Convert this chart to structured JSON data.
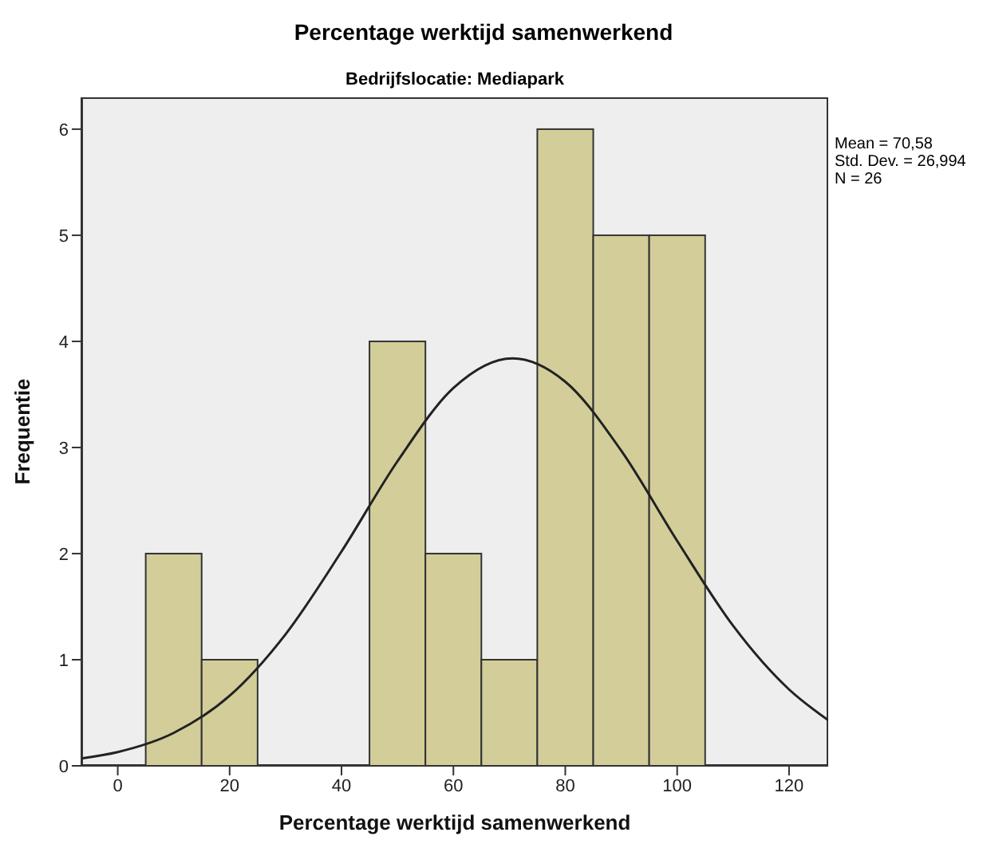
{
  "chart_data": {
    "type": "histogram",
    "title": "Percentage werktijd samenwerkend",
    "subtitle": "Bedrijfslocatie: Mediapark",
    "xlabel": "Percentage werktijd samenwerkend",
    "ylabel": "Frequentie",
    "bins": [
      5,
      15,
      25,
      35,
      45,
      55,
      65,
      75,
      85,
      95,
      105
    ],
    "series": [
      {
        "color": "#d3ce99",
        "values": [
          2,
          1,
          0,
          0,
          4,
          2,
          1,
          6,
          5,
          5
        ]
      },
      {
        "type": "line",
        "color": "#222222",
        "x": [
          -6.5,
          0,
          10,
          20,
          30,
          40,
          50,
          60,
          70.58,
          80,
          90,
          100,
          110,
          120,
          127
        ],
        "values": [
          0.07,
          0.13,
          0.31,
          0.66,
          1.24,
          2.02,
          2.87,
          3.56,
          3.84,
          3.62,
          2.97,
          2.12,
          1.32,
          0.72,
          0.43
        ]
      }
    ],
    "xlim": [
      -6.5,
      127
    ],
    "xticks": [
      0,
      20,
      40,
      60,
      80,
      100,
      120
    ],
    "ylim": [
      0,
      6.3
    ],
    "yticks": [
      0,
      1,
      2,
      3,
      4,
      5,
      6
    ],
    "marker": "none",
    "line_style": "solid",
    "annotations": [
      "Mean = 70,58",
      "Std. Dev. = 26,994",
      "N = 26"
    ]
  }
}
